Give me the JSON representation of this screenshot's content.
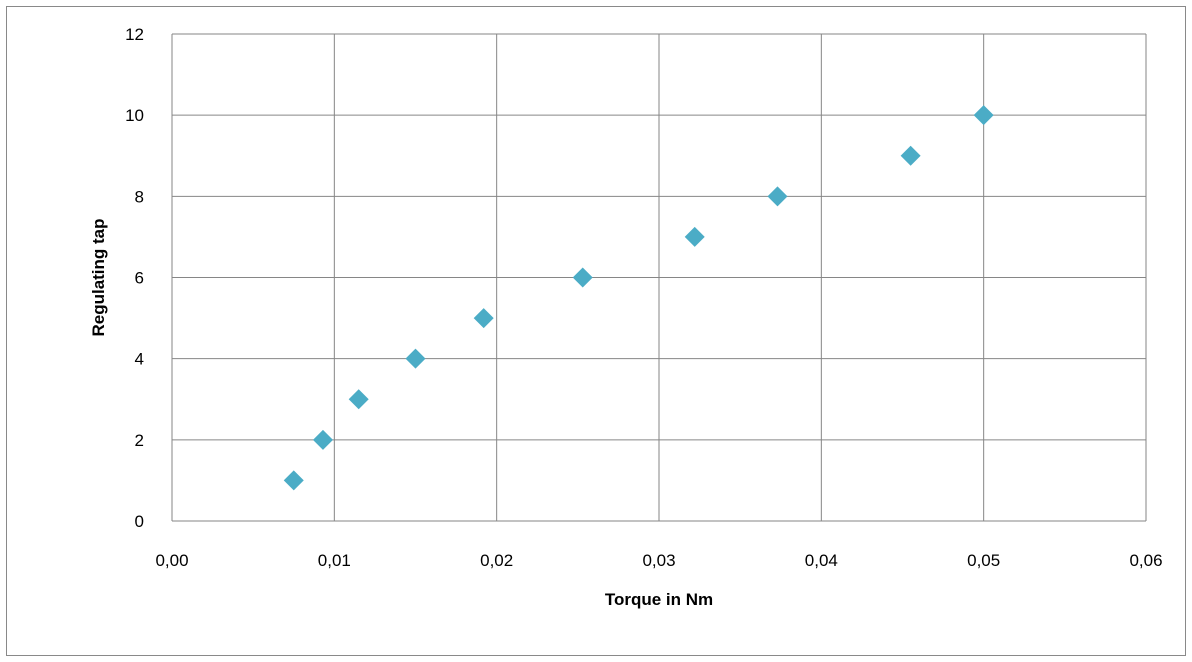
{
  "chart_data": {
    "type": "scatter",
    "title": "",
    "xlabel": "Torque in Nm",
    "ylabel": "Regulating tap",
    "xlim": [
      0,
      0.06
    ],
    "ylim": [
      0,
      12
    ],
    "x_ticks": [
      "0,00",
      "0,01",
      "0,02",
      "0,03",
      "0,04",
      "0,05",
      "0,06"
    ],
    "y_ticks": [
      "0",
      "2",
      "4",
      "6",
      "8",
      "10",
      "12"
    ],
    "grid": true,
    "legend": "none",
    "marker": "diamond",
    "marker_color": "#4BACC6",
    "series": [
      {
        "x": [
          0.0075,
          0.0093,
          0.0115,
          0.015,
          0.0192,
          0.0253,
          0.0322,
          0.0373,
          0.0455,
          0.05
        ],
        "y": [
          1,
          2,
          3,
          4,
          5,
          6,
          7,
          8,
          9,
          10
        ]
      }
    ]
  }
}
